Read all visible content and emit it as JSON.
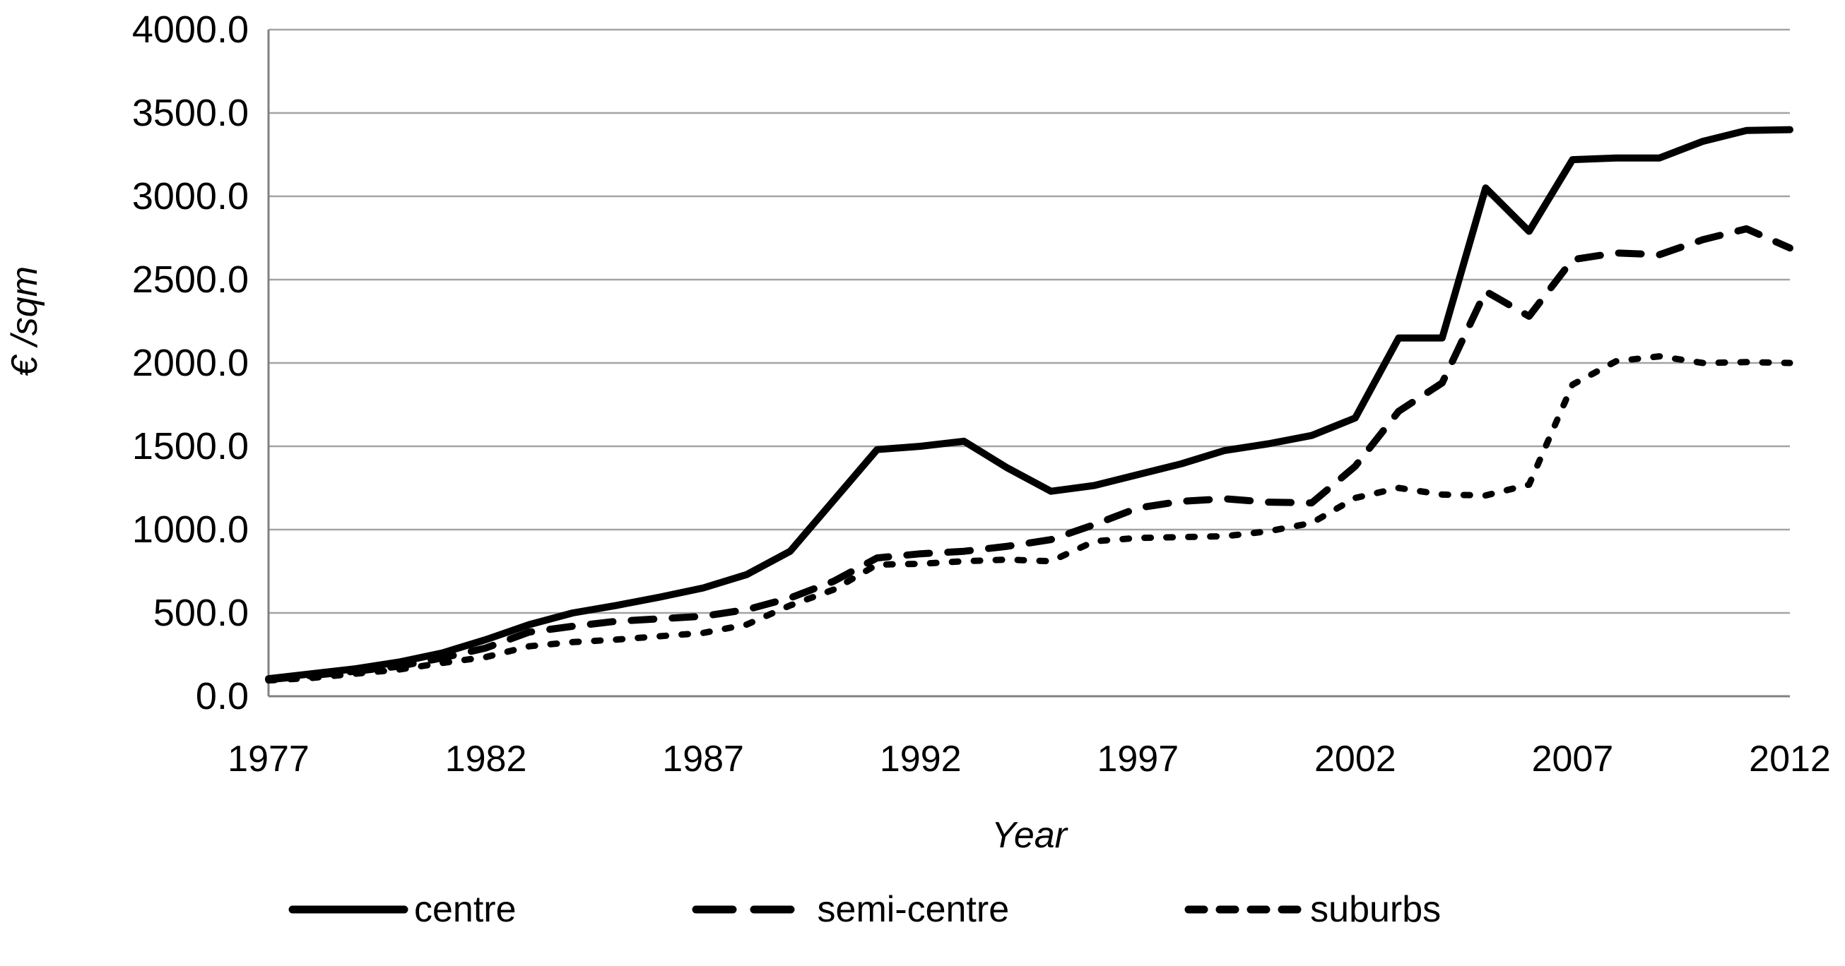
{
  "figure": {
    "y_axis_title": "€ /sqm",
    "x_axis_title": "Year"
  },
  "chart_data": {
    "type": "line",
    "title": "",
    "xlabel": "Year",
    "ylabel": "€ /sqm",
    "x": [
      1977,
      1978,
      1979,
      1980,
      1981,
      1982,
      1983,
      1984,
      1985,
      1986,
      1987,
      1988,
      1989,
      1990,
      1991,
      1992,
      1993,
      1994,
      1995,
      1996,
      1997,
      1998,
      1999,
      2000,
      2001,
      2002,
      2003,
      2004,
      2005,
      2006,
      2007,
      2008,
      2009,
      2010,
      2011,
      2012
    ],
    "x_tick_labels": [
      "1977",
      "1982",
      "1987",
      "1992",
      "1997",
      "2002",
      "2007",
      "2012"
    ],
    "x_tick_years": [
      1977,
      1982,
      1987,
      1992,
      1997,
      2002,
      2007,
      2012
    ],
    "y_ticks": [
      0,
      500,
      1000,
      1500,
      2000,
      2500,
      3000,
      3500,
      4000
    ],
    "y_tick_labels": [
      "0.0",
      "500.0",
      "1000.0",
      "1500.0",
      "2000.0",
      "2500.0",
      "3000.0",
      "3500.0",
      "4000.0"
    ],
    "ylim": [
      0,
      4000
    ],
    "grid": "horizontal",
    "legend_position": "bottom",
    "series": [
      {
        "name": "centre",
        "dash": "solid",
        "values": [
          105,
          135,
          165,
          205,
          260,
          340,
          430,
          500,
          545,
          595,
          650,
          730,
          870,
          1175,
          1480,
          1500,
          1530,
          1370,
          1230,
          1265,
          1330,
          1395,
          1475,
          1515,
          1565,
          1670,
          2150,
          2150,
          3050,
          2790,
          3220,
          3230,
          3230,
          3330,
          3395,
          3400
        ]
      },
      {
        "name": "semi-centre",
        "dash": "long-dash",
        "values": [
          100,
          125,
          150,
          180,
          230,
          290,
          385,
          420,
          450,
          465,
          480,
          520,
          590,
          690,
          830,
          855,
          870,
          900,
          940,
          1030,
          1130,
          1170,
          1185,
          1165,
          1160,
          1380,
          1710,
          1880,
          2430,
          2280,
          2620,
          2660,
          2650,
          2740,
          2805,
          2690
        ]
      },
      {
        "name": "suburbs",
        "dash": "short-dash",
        "values": [
          95,
          110,
          135,
          160,
          200,
          235,
          300,
          325,
          340,
          360,
          380,
          430,
          545,
          640,
          790,
          795,
          810,
          820,
          810,
          930,
          950,
          955,
          960,
          990,
          1040,
          1190,
          1250,
          1210,
          1205,
          1270,
          1870,
          2010,
          2040,
          2000,
          2005,
          2000
        ]
      }
    ],
    "colors": {
      "line": "#000000",
      "grid": "#a3a3a3",
      "axis": "#808080",
      "text": "#000000",
      "background": "#ffffff"
    }
  }
}
